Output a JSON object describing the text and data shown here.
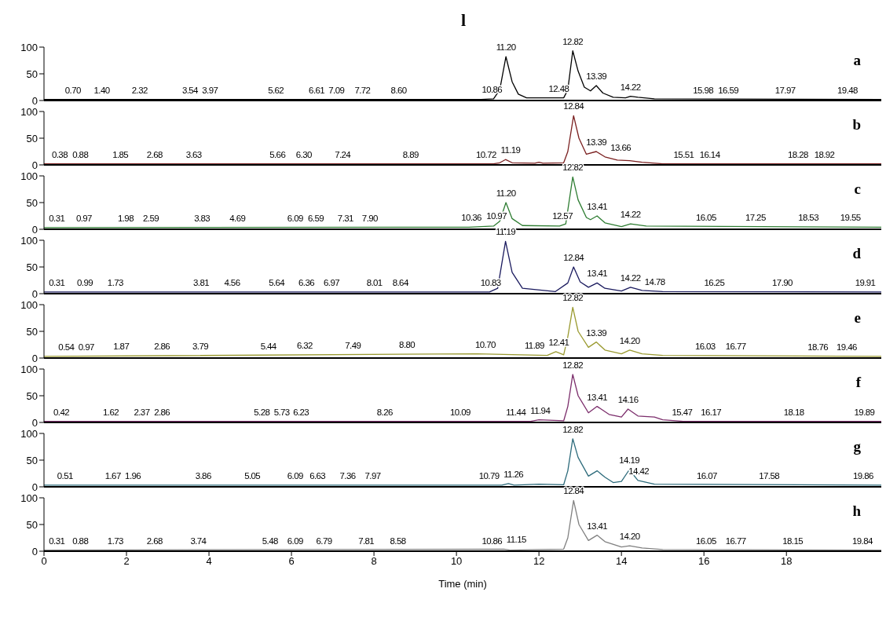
{
  "chart_data": [
    {
      "type": "line",
      "title": "l",
      "xlim": [
        0,
        20.3
      ],
      "ylim": [
        0,
        100
      ],
      "yticks": [
        0,
        50,
        100
      ],
      "tick_labels": "y",
      "x": [
        0,
        10.6,
        10.9,
        11.05,
        11.2,
        11.35,
        11.5,
        11.7,
        12.4,
        12.6,
        12.7,
        12.82,
        12.95,
        13.1,
        13.25,
        13.39,
        13.55,
        13.8,
        14.1,
        14.22,
        14.4,
        14.8,
        20.3
      ],
      "values": [
        2,
        2,
        3,
        20,
        82,
        35,
        12,
        5,
        5,
        5,
        20,
        93,
        55,
        25,
        18,
        28,
        14,
        6,
        5,
        8,
        6,
        3,
        2
      ],
      "color": "#000000",
      "annotations": [
        "a",
        {
          "text": "0.70",
          "x": 0.7,
          "y": 2
        },
        {
          "text": "1.40",
          "x": 1.4,
          "y": 2
        },
        {
          "text": "2.32",
          "x": 2.32,
          "y": 2
        },
        {
          "text": "3.54",
          "x": 3.54,
          "y": 2
        },
        {
          "text": "3.97",
          "x": 3.97,
          "y": 2
        },
        {
          "text": "5.62",
          "x": 5.62,
          "y": 2
        },
        {
          "text": "6.61",
          "x": 6.61,
          "y": 2
        },
        {
          "text": "7.09",
          "x": 7.09,
          "y": 2
        },
        {
          "text": "7.72",
          "x": 7.72,
          "y": 2
        },
        {
          "text": "8.60",
          "x": 8.6,
          "y": 2
        },
        {
          "text": "10.86",
          "x": 10.86,
          "y": 3
        },
        {
          "text": "11.20",
          "x": 11.2,
          "y": 82
        },
        {
          "text": "12.48",
          "x": 12.48,
          "y": 5
        },
        {
          "text": "12.82",
          "x": 12.82,
          "y": 93
        },
        {
          "text": "13.39",
          "x": 13.39,
          "y": 28
        },
        {
          "text": "14.22",
          "x": 14.22,
          "y": 8
        },
        {
          "text": "15.98",
          "x": 15.98,
          "y": 2
        },
        {
          "text": "16.59",
          "x": 16.59,
          "y": 2
        },
        {
          "text": "17.97",
          "x": 17.97,
          "y": 2
        },
        {
          "text": "19.48",
          "x": 19.48,
          "y": 2
        }
      ]
    },
    {
      "type": "line",
      "xlim": [
        0,
        20.3
      ],
      "ylim": [
        0,
        100
      ],
      "yticks": [
        0,
        50,
        100
      ],
      "tick_labels": "y",
      "x": [
        0,
        10.9,
        11.05,
        11.19,
        11.35,
        11.9,
        12.0,
        12.1,
        12.6,
        12.7,
        12.84,
        12.97,
        13.15,
        13.39,
        13.6,
        13.9,
        14.2,
        14.5,
        15,
        20.3
      ],
      "values": [
        2,
        2,
        4,
        10,
        4,
        3,
        5,
        3,
        4,
        25,
        92,
        50,
        20,
        25,
        15,
        9,
        8,
        5,
        2,
        2
      ],
      "color": "#7a1f1f",
      "annotations": [
        "b",
        {
          "text": "0.38",
          "x": 0.38,
          "y": 2
        },
        {
          "text": "0.88",
          "x": 0.88,
          "y": 2
        },
        {
          "text": "1.85",
          "x": 1.85,
          "y": 2
        },
        {
          "text": "2.68",
          "x": 2.68,
          "y": 2
        },
        {
          "text": "3.63",
          "x": 3.63,
          "y": 2
        },
        {
          "text": "5.66",
          "x": 5.66,
          "y": 2
        },
        {
          "text": "6.30",
          "x": 6.3,
          "y": 2
        },
        {
          "text": "7.24",
          "x": 7.24,
          "y": 2
        },
        {
          "text": "8.89",
          "x": 8.89,
          "y": 2
        },
        {
          "text": "10.72",
          "x": 10.72,
          "y": 2
        },
        {
          "text": "11.19",
          "x": 11.19,
          "y": 10
        },
        {
          "text": "12.84",
          "x": 12.84,
          "y": 92
        },
        {
          "text": "13.39",
          "x": 13.39,
          "y": 25
        },
        {
          "text": "13.66",
          "x": 13.66,
          "y": 14
        },
        {
          "text": "15.51",
          "x": 15.51,
          "y": 2
        },
        {
          "text": "16.14",
          "x": 16.14,
          "y": 2
        },
        {
          "text": "18.28",
          "x": 18.28,
          "y": 2
        },
        {
          "text": "18.92",
          "x": 18.92,
          "y": 2
        }
      ]
    },
    {
      "type": "line",
      "xlim": [
        0,
        20.3
      ],
      "ylim": [
        0,
        100
      ],
      "yticks": [
        0,
        50,
        100
      ],
      "tick_labels": "y",
      "x": [
        0,
        10.3,
        10.9,
        11.05,
        11.2,
        11.35,
        11.6,
        12.5,
        12.65,
        12.82,
        12.95,
        13.15,
        13.25,
        13.41,
        13.6,
        14.0,
        14.22,
        14.6,
        20.3
      ],
      "values": [
        3,
        4,
        6,
        15,
        50,
        20,
        7,
        6,
        10,
        98,
        55,
        22,
        18,
        25,
        12,
        5,
        10,
        6,
        4
      ],
      "color": "#2e7d32",
      "annotations": [
        "c",
        {
          "text": "0.31",
          "x": 0.31,
          "y": 3
        },
        {
          "text": "0.97",
          "x": 0.97,
          "y": 3
        },
        {
          "text": "1.98",
          "x": 1.98,
          "y": 3
        },
        {
          "text": "2.59",
          "x": 2.59,
          "y": 3
        },
        {
          "text": "3.83",
          "x": 3.83,
          "y": 3
        },
        {
          "text": "4.69",
          "x": 4.69,
          "y": 3
        },
        {
          "text": "6.09",
          "x": 6.09,
          "y": 3
        },
        {
          "text": "6.59",
          "x": 6.59,
          "y": 3
        },
        {
          "text": "7.31",
          "x": 7.31,
          "y": 3
        },
        {
          "text": "7.90",
          "x": 7.9,
          "y": 3
        },
        {
          "text": "10.36",
          "x": 10.36,
          "y": 4
        },
        {
          "text": "10.97",
          "x": 10.97,
          "y": 8
        },
        {
          "text": "11.20",
          "x": 11.2,
          "y": 50
        },
        {
          "text": "12.57",
          "x": 12.57,
          "y": 8
        },
        {
          "text": "12.82",
          "x": 12.82,
          "y": 98
        },
        {
          "text": "13.41",
          "x": 13.41,
          "y": 25
        },
        {
          "text": "14.22",
          "x": 14.22,
          "y": 10
        },
        {
          "text": "16.05",
          "x": 16.05,
          "y": 4
        },
        {
          "text": "17.25",
          "x": 17.25,
          "y": 4
        },
        {
          "text": "18.53",
          "x": 18.53,
          "y": 4
        },
        {
          "text": "19.55",
          "x": 19.55,
          "y": 4
        }
      ]
    },
    {
      "type": "line",
      "xlim": [
        0,
        20.3
      ],
      "ylim": [
        0,
        100
      ],
      "yticks": [
        0,
        50,
        100
      ],
      "tick_labels": "y",
      "x": [
        0,
        10.8,
        11.0,
        11.19,
        11.35,
        11.6,
        12.4,
        12.7,
        12.84,
        13.0,
        13.2,
        13.41,
        13.6,
        14.0,
        14.22,
        14.5,
        15,
        20.3
      ],
      "values": [
        3,
        3,
        10,
        98,
        40,
        10,
        4,
        20,
        50,
        22,
        12,
        20,
        10,
        5,
        12,
        6,
        4,
        3
      ],
      "color": "#1a1a5e",
      "annotations": [
        "d",
        {
          "text": "0.31",
          "x": 0.31,
          "y": 3
        },
        {
          "text": "0.99",
          "x": 0.99,
          "y": 3
        },
        {
          "text": "1.73",
          "x": 1.73,
          "y": 3
        },
        {
          "text": "3.81",
          "x": 3.81,
          "y": 3
        },
        {
          "text": "4.56",
          "x": 4.56,
          "y": 3
        },
        {
          "text": "5.64",
          "x": 5.64,
          "y": 3
        },
        {
          "text": "6.36",
          "x": 6.36,
          "y": 3
        },
        {
          "text": "6.97",
          "x": 6.97,
          "y": 3
        },
        {
          "text": "8.01",
          "x": 8.01,
          "y": 3
        },
        {
          "text": "8.64",
          "x": 8.64,
          "y": 3
        },
        {
          "text": "10.83",
          "x": 10.83,
          "y": 3
        },
        {
          "text": "11.19",
          "x": 11.19,
          "y": 98
        },
        {
          "text": "12.84",
          "x": 12.84,
          "y": 50
        },
        {
          "text": "13.41",
          "x": 13.41,
          "y": 20
        },
        {
          "text": "14.22",
          "x": 14.22,
          "y": 12
        },
        {
          "text": "14.78",
          "x": 14.78,
          "y": 4
        },
        {
          "text": "16.25",
          "x": 16.25,
          "y": 3
        },
        {
          "text": "17.90",
          "x": 17.9,
          "y": 3
        },
        {
          "text": "19.91",
          "x": 19.91,
          "y": 3
        }
      ]
    },
    {
      "type": "line",
      "xlim": [
        0,
        20.3
      ],
      "ylim": [
        0,
        100
      ],
      "yticks": [
        0,
        50,
        100
      ],
      "tick_labels": "y",
      "x": [
        0,
        10.5,
        12.2,
        12.41,
        12.6,
        12.7,
        12.82,
        12.95,
        13.2,
        13.39,
        13.6,
        14.0,
        14.2,
        14.5,
        15,
        20.3
      ],
      "values": [
        3,
        8,
        5,
        12,
        6,
        40,
        95,
        50,
        20,
        30,
        15,
        8,
        15,
        8,
        5,
        3
      ],
      "color": "#9a9a30",
      "annotations": [
        "e",
        {
          "text": "0.54",
          "x": 0.54,
          "y": 3
        },
        {
          "text": "0.97",
          "x": 0.97,
          "y": 3
        },
        {
          "text": "1.87",
          "x": 1.87,
          "y": 4
        },
        {
          "text": "2.86",
          "x": 2.86,
          "y": 4
        },
        {
          "text": "3.79",
          "x": 3.79,
          "y": 5
        },
        {
          "text": "5.44",
          "x": 5.44,
          "y": 5
        },
        {
          "text": "6.32",
          "x": 6.32,
          "y": 6
        },
        {
          "text": "7.49",
          "x": 7.49,
          "y": 6
        },
        {
          "text": "8.80",
          "x": 8.8,
          "y": 7
        },
        {
          "text": "10.70",
          "x": 10.7,
          "y": 8
        },
        {
          "text": "11.89",
          "x": 11.89,
          "y": 6
        },
        {
          "text": "12.41",
          "x": 12.41,
          "y": 12
        },
        {
          "text": "12.82",
          "x": 12.82,
          "y": 95
        },
        {
          "text": "13.39",
          "x": 13.39,
          "y": 30
        },
        {
          "text": "14.20",
          "x": 14.2,
          "y": 15
        },
        {
          "text": "16.03",
          "x": 16.03,
          "y": 4
        },
        {
          "text": "16.77",
          "x": 16.77,
          "y": 4
        },
        {
          "text": "18.76",
          "x": 18.76,
          "y": 3
        },
        {
          "text": "19.46",
          "x": 19.46,
          "y": 3
        }
      ]
    },
    {
      "type": "line",
      "xlim": [
        0,
        20.3
      ],
      "ylim": [
        0,
        100
      ],
      "yticks": [
        0,
        50,
        100
      ],
      "tick_labels": "y",
      "x": [
        0,
        11.8,
        12.0,
        12.6,
        12.7,
        12.82,
        12.95,
        13.2,
        13.41,
        13.7,
        14.0,
        14.16,
        14.4,
        14.8,
        15,
        15.5,
        20.3
      ],
      "values": [
        2,
        2,
        5,
        3,
        30,
        90,
        50,
        18,
        30,
        15,
        10,
        25,
        12,
        10,
        5,
        2,
        2
      ],
      "color": "#7b2d6b",
      "annotations": [
        "f",
        {
          "text": "0.42",
          "x": 0.42,
          "y": 2
        },
        {
          "text": "1.62",
          "x": 1.62,
          "y": 2
        },
        {
          "text": "2.37",
          "x": 2.37,
          "y": 2
        },
        {
          "text": "2.86",
          "x": 2.86,
          "y": 2
        },
        {
          "text": "5.28",
          "x": 5.28,
          "y": 2
        },
        {
          "text": "5.73",
          "x": 5.73,
          "y": 2
        },
        {
          "text": "6.23",
          "x": 6.23,
          "y": 2
        },
        {
          "text": "8.26",
          "x": 8.26,
          "y": 2
        },
        {
          "text": "10.09",
          "x": 10.09,
          "y": 2
        },
        {
          "text": "11.44",
          "x": 11.44,
          "y": 2
        },
        {
          "text": "11.94",
          "x": 11.94,
          "y": 4
        },
        {
          "text": "12.82",
          "x": 12.82,
          "y": 90
        },
        {
          "text": "13.41",
          "x": 13.41,
          "y": 30
        },
        {
          "text": "14.16",
          "x": 14.16,
          "y": 25
        },
        {
          "text": "15.47",
          "x": 15.47,
          "y": 2
        },
        {
          "text": "16.17",
          "x": 16.17,
          "y": 2
        },
        {
          "text": "18.18",
          "x": 18.18,
          "y": 2
        },
        {
          "text": "19.89",
          "x": 19.89,
          "y": 2
        }
      ]
    },
    {
      "type": "line",
      "xlim": [
        0,
        20.3
      ],
      "ylim": [
        0,
        100
      ],
      "yticks": [
        0,
        50,
        100
      ],
      "tick_labels": "y",
      "x": [
        0,
        11.1,
        11.26,
        11.4,
        12.0,
        12.6,
        12.7,
        12.82,
        12.95,
        13.2,
        13.41,
        13.6,
        13.8,
        14.0,
        14.19,
        14.4,
        14.8,
        20.3
      ],
      "values": [
        3,
        3,
        6,
        3,
        5,
        4,
        30,
        90,
        55,
        20,
        30,
        18,
        8,
        10,
        32,
        12,
        5,
        3
      ],
      "color": "#2d6b7b",
      "annotations": [
        "g",
        {
          "text": "0.51",
          "x": 0.51,
          "y": 3
        },
        {
          "text": "1.67",
          "x": 1.67,
          "y": 3
        },
        {
          "text": "1.96",
          "x": 1.96,
          "y": 3
        },
        {
          "text": "3.86",
          "x": 3.86,
          "y": 3
        },
        {
          "text": "5.05",
          "x": 5.05,
          "y": 3
        },
        {
          "text": "6.09",
          "x": 6.09,
          "y": 3
        },
        {
          "text": "6.63",
          "x": 6.63,
          "y": 3
        },
        {
          "text": "7.36",
          "x": 7.36,
          "y": 3
        },
        {
          "text": "7.97",
          "x": 7.97,
          "y": 3
        },
        {
          "text": "10.79",
          "x": 10.79,
          "y": 3
        },
        {
          "text": "11.26",
          "x": 11.26,
          "y": 6
        },
        {
          "text": "12.82",
          "x": 12.82,
          "y": 90
        },
        {
          "text": "14.19",
          "x": 14.19,
          "y": 32
        },
        {
          "text": "14.42",
          "x": 14.42,
          "y": 12
        },
        {
          "text": "16.07",
          "x": 16.07,
          "y": 3
        },
        {
          "text": "17.58",
          "x": 17.58,
          "y": 3
        },
        {
          "text": "19.86",
          "x": 19.86,
          "y": 3
        }
      ]
    },
    {
      "type": "line",
      "xlim": [
        0,
        20.3
      ],
      "ylim": [
        0,
        100
      ],
      "yticks": [
        0,
        50,
        100
      ],
      "xticks": [
        0,
        2,
        4,
        6,
        8,
        10,
        12,
        14,
        16,
        18
      ],
      "xlabel": "Time (min)",
      "x": [
        0,
        11.15,
        11.3,
        12.0,
        12.6,
        12.7,
        12.84,
        12.97,
        13.2,
        13.41,
        13.6,
        14.0,
        14.2,
        14.5,
        15,
        20.3
      ],
      "values": [
        2,
        4,
        2,
        3,
        4,
        25,
        95,
        50,
        20,
        30,
        18,
        8,
        10,
        6,
        3,
        2
      ],
      "color": "#808080",
      "annotations": [
        "h",
        {
          "text": "0.31",
          "x": 0.31,
          "y": 2
        },
        {
          "text": "0.88",
          "x": 0.88,
          "y": 2
        },
        {
          "text": "1.73",
          "x": 1.73,
          "y": 2
        },
        {
          "text": "2.68",
          "x": 2.68,
          "y": 2
        },
        {
          "text": "3.74",
          "x": 3.74,
          "y": 2
        },
        {
          "text": "5.48",
          "x": 5.48,
          "y": 2
        },
        {
          "text": "6.09",
          "x": 6.09,
          "y": 2
        },
        {
          "text": "6.79",
          "x": 6.79,
          "y": 2
        },
        {
          "text": "7.81",
          "x": 7.81,
          "y": 2
        },
        {
          "text": "8.58",
          "x": 8.58,
          "y": 2
        },
        {
          "text": "10.86",
          "x": 10.86,
          "y": 2
        },
        {
          "text": "11.15",
          "x": 11.15,
          "y": 4
        },
        {
          "text": "12.84",
          "x": 12.84,
          "y": 95
        },
        {
          "text": "13.41",
          "x": 13.41,
          "y": 30
        },
        {
          "text": "14.20",
          "x": 14.2,
          "y": 10
        },
        {
          "text": "16.05",
          "x": 16.05,
          "y": 2
        },
        {
          "text": "16.77",
          "x": 16.77,
          "y": 2
        },
        {
          "text": "18.15",
          "x": 18.15,
          "y": 2
        },
        {
          "text": "19.84",
          "x": 19.84,
          "y": 2
        }
      ]
    }
  ]
}
